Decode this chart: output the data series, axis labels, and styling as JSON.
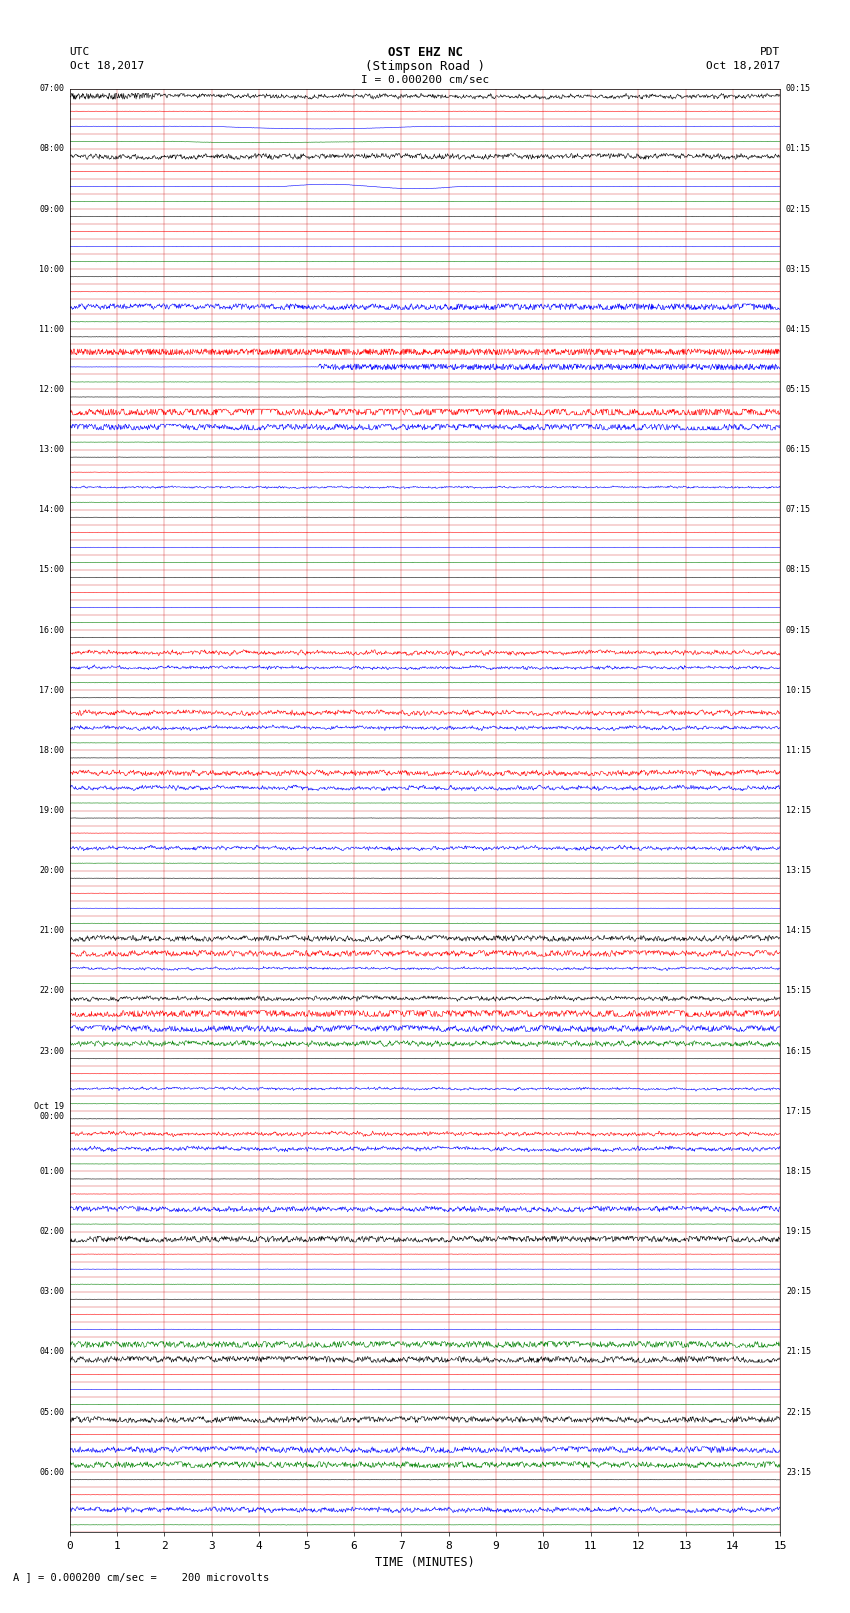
{
  "title_line1": "OST EHZ NC",
  "title_line2": "(Stimpson Road )",
  "title_line3": "I = 0.000200 cm/sec",
  "left_header1": "UTC",
  "left_header2": "Oct 18,2017",
  "right_header1": "PDT",
  "right_header2": "Oct 18,2017",
  "xlabel": "TIME (MINUTES)",
  "footer": "A ] = 0.000200 cm/sec =    200 microvolts",
  "x_min": 0,
  "x_max": 15,
  "background_color": "#ffffff",
  "grid_color": "#cc0000",
  "trace_colors": [
    "#000000",
    "#ff0000",
    "#0000ff",
    "#008000"
  ],
  "left_labels": [
    "07:00",
    "",
    "",
    "",
    "08:00",
    "",
    "",
    "",
    "09:00",
    "",
    "",
    "",
    "10:00",
    "",
    "",
    "",
    "11:00",
    "",
    "",
    "",
    "12:00",
    "",
    "",
    "",
    "13:00",
    "",
    "",
    "",
    "14:00",
    "",
    "",
    "",
    "15:00",
    "",
    "",
    "",
    "16:00",
    "",
    "",
    "",
    "17:00",
    "",
    "",
    "",
    "18:00",
    "",
    "",
    "",
    "19:00",
    "",
    "",
    "",
    "20:00",
    "",
    "",
    "",
    "21:00",
    "",
    "",
    "",
    "22:00",
    "",
    "",
    "",
    "23:00",
    "",
    "",
    "",
    "Oct 19\n00:00",
    "",
    "",
    "",
    "01:00",
    "",
    "",
    "",
    "02:00",
    "",
    "",
    "",
    "03:00",
    "",
    "",
    "",
    "04:00",
    "",
    "",
    "",
    "05:00",
    "",
    "",
    "",
    "06:00",
    "",
    "",
    ""
  ],
  "right_labels": [
    "00:15",
    "",
    "",
    "",
    "01:15",
    "",
    "",
    "",
    "02:15",
    "",
    "",
    "",
    "03:15",
    "",
    "",
    "",
    "04:15",
    "",
    "",
    "",
    "05:15",
    "",
    "",
    "",
    "06:15",
    "",
    "",
    "",
    "07:15",
    "",
    "",
    "",
    "08:15",
    "",
    "",
    "",
    "09:15",
    "",
    "",
    "",
    "10:15",
    "",
    "",
    "",
    "11:15",
    "",
    "",
    "",
    "12:15",
    "",
    "",
    "",
    "13:15",
    "",
    "",
    "",
    "14:15",
    "",
    "",
    "",
    "15:15",
    "",
    "",
    "",
    "16:15",
    "",
    "",
    "",
    "17:15",
    "",
    "",
    "",
    "18:15",
    "",
    "",
    "",
    "19:15",
    "",
    "",
    "",
    "20:15",
    "",
    "",
    "",
    "21:15",
    "",
    "",
    "",
    "22:15",
    "",
    "",
    "",
    "23:15",
    "",
    "",
    ""
  ],
  "row_colors": [
    0,
    1,
    2,
    3,
    0,
    1,
    2,
    3,
    0,
    1,
    2,
    3,
    0,
    1,
    2,
    3,
    0,
    1,
    2,
    3,
    0,
    1,
    2,
    3,
    0,
    1,
    2,
    3,
    0,
    1,
    2,
    3,
    0,
    1,
    2,
    3,
    0,
    1,
    2,
    3,
    0,
    1,
    2,
    3,
    0,
    1,
    2,
    3,
    0,
    1,
    2,
    3,
    0,
    1,
    2,
    3,
    0,
    1,
    2,
    3,
    0,
    1,
    2,
    3,
    0,
    1,
    2,
    3,
    0,
    1,
    2,
    3,
    0,
    1,
    2,
    3,
    0,
    1,
    2,
    3,
    0,
    1,
    2,
    3,
    0,
    1,
    2,
    3,
    0,
    1,
    2,
    3,
    0,
    1,
    2,
    3
  ],
  "row_amplitudes": [
    0.35,
    0.04,
    0.04,
    0.04,
    0.45,
    0.04,
    0.04,
    0.04,
    0.04,
    0.04,
    0.04,
    0.04,
    0.04,
    0.04,
    0.55,
    0.04,
    0.04,
    0.04,
    0.04,
    0.04,
    0.04,
    0.9,
    0.65,
    0.04,
    0.04,
    0.04,
    0.15,
    0.04,
    0.04,
    0.04,
    0.04,
    0.04,
    0.04,
    0.04,
    0.04,
    0.04,
    0.04,
    0.35,
    0.25,
    0.04,
    0.04,
    0.4,
    0.3,
    0.04,
    0.04,
    0.45,
    0.35,
    0.04,
    0.04,
    0.04,
    0.3,
    0.04,
    0.04,
    0.04,
    0.04,
    0.04,
    0.5,
    0.55,
    0.2,
    0.04,
    0.35,
    0.8,
    0.65,
    0.45,
    0.04,
    0.04,
    0.2,
    0.04,
    0.04,
    0.3,
    0.35,
    0.04,
    0.04,
    0.04,
    0.45,
    0.04,
    0.55,
    0.04,
    0.04,
    0.04,
    0.04,
    0.04,
    0.04,
    0.65,
    0.6,
    0.04,
    0.04,
    0.04,
    0.55,
    0.04,
    0.6,
    0.55,
    0.04,
    0.04,
    0.4,
    0.04
  ],
  "num_rows": 96
}
